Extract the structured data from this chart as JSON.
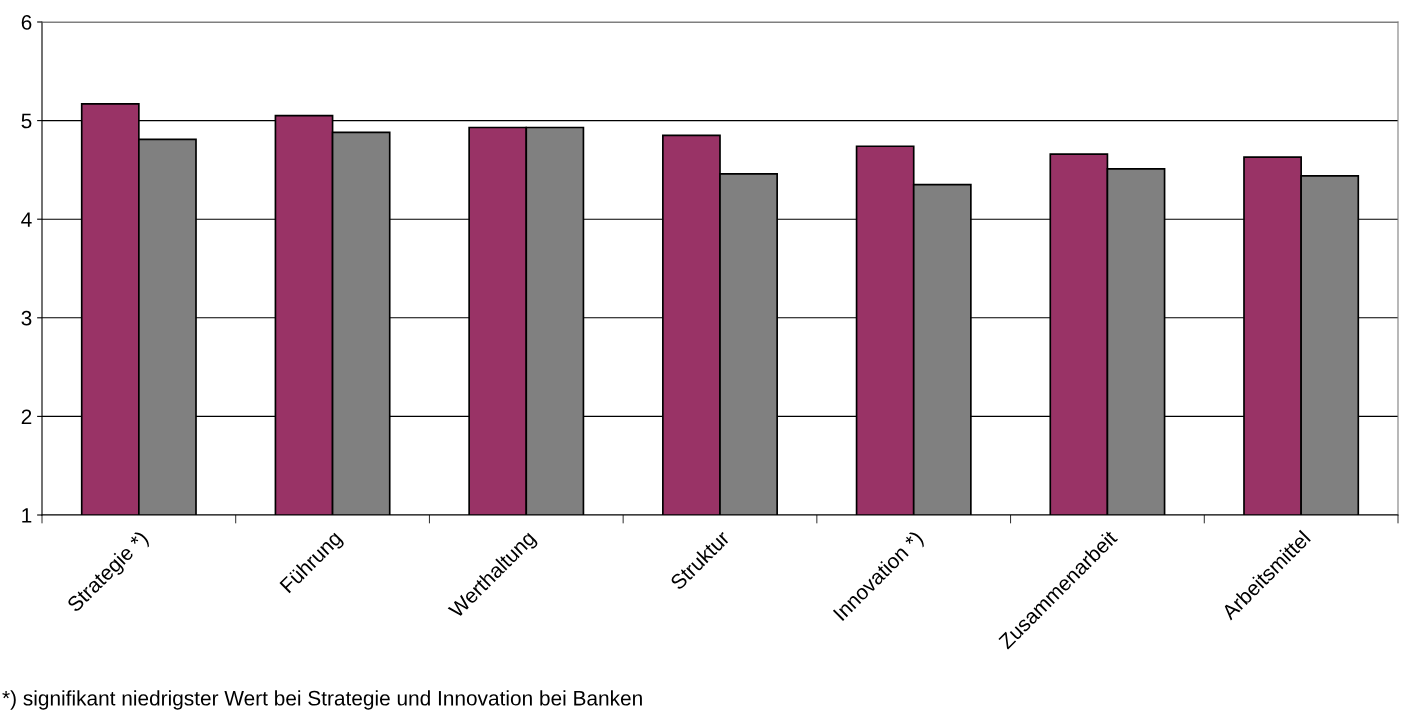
{
  "chart_data": {
    "type": "bar",
    "categories": [
      "Strategie *)",
      "Führung",
      "Werthaltung",
      "Struktur",
      "Innovation *)",
      "Zusammenarbeit",
      "Arbeitsmittel"
    ],
    "series": [
      {
        "color": "#993366",
        "values": [
          5.17,
          5.05,
          4.93,
          4.85,
          4.74,
          4.66,
          4.63
        ]
      },
      {
        "color": "#808080",
        "values": [
          4.81,
          4.88,
          4.93,
          4.46,
          4.35,
          4.51,
          4.44
        ]
      }
    ],
    "ylim": [
      1,
      6
    ],
    "yticks": [
      1,
      2,
      3,
      4,
      5,
      6
    ],
    "grid": "y",
    "annotations": [
      "*) signifikant niedrigster Wert bei Strategie und Innovation bei Banken"
    ]
  }
}
